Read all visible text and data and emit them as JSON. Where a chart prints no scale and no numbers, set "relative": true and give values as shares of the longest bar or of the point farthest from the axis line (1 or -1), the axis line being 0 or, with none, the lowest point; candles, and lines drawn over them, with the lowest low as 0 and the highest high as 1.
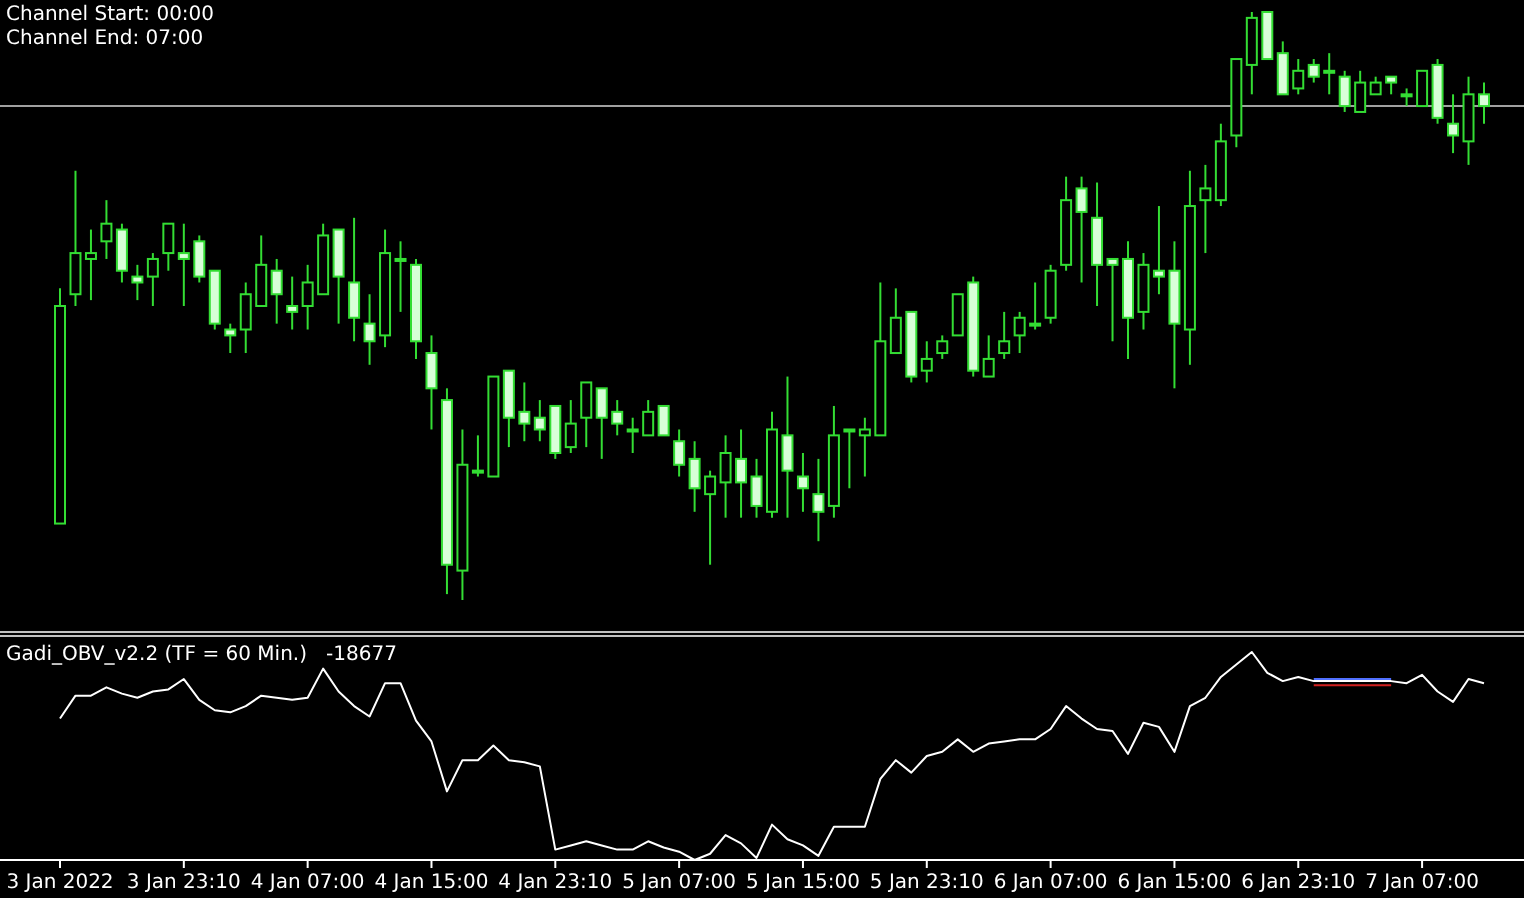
{
  "chart_data": [
    {
      "type": "candlestick",
      "relative": true,
      "color": "#33dd33",
      "annotations": [
        "Channel Start: 00:00",
        "Channel End: 07:00"
      ],
      "ref_lines": [
        {
          "axis": "y",
          "value": 0.84,
          "color": "#a0a0a0"
        }
      ],
      "categories": [
        null,
        null,
        null,
        null,
        null,
        null,
        null,
        null,
        null,
        null,
        null,
        null,
        null,
        null,
        null,
        null,
        null,
        null,
        null,
        null,
        null,
        null,
        null,
        null,
        null,
        null,
        null,
        null,
        null,
        null,
        null,
        null,
        null,
        null,
        null,
        null,
        null,
        null,
        null,
        null,
        null,
        null,
        null,
        null,
        null,
        null,
        null,
        null,
        null,
        null,
        null,
        null,
        null,
        null,
        null,
        null,
        null,
        null,
        null,
        null,
        null,
        null,
        null,
        null,
        null,
        null,
        null,
        null,
        null,
        null,
        null,
        null,
        null,
        null,
        null,
        null,
        null,
        null,
        null,
        null,
        null,
        null,
        null,
        null,
        null,
        null,
        null,
        null,
        null,
        null,
        null,
        null,
        null
      ],
      "ohlc": [
        [
          0.13,
          0.53,
          0.13,
          0.5
        ],
        [
          0.52,
          0.73,
          0.5,
          0.59
        ],
        [
          0.58,
          0.63,
          0.51,
          0.59
        ],
        [
          0.61,
          0.68,
          0.58,
          0.64
        ],
        [
          0.63,
          0.64,
          0.54,
          0.56
        ],
        [
          0.55,
          0.57,
          0.51,
          0.54
        ],
        [
          0.55,
          0.59,
          0.5,
          0.58
        ],
        [
          0.59,
          0.64,
          0.56,
          0.64
        ],
        [
          0.59,
          0.64,
          0.5,
          0.58
        ],
        [
          0.61,
          0.62,
          0.54,
          0.55
        ],
        [
          0.56,
          0.56,
          0.46,
          0.47
        ],
        [
          0.46,
          0.47,
          0.42,
          0.45
        ],
        [
          0.46,
          0.54,
          0.42,
          0.52
        ],
        [
          0.5,
          0.62,
          0.5,
          0.57
        ],
        [
          0.56,
          0.58,
          0.47,
          0.52
        ],
        [
          0.5,
          0.55,
          0.46,
          0.49
        ],
        [
          0.5,
          0.57,
          0.46,
          0.54
        ],
        [
          0.52,
          0.64,
          0.52,
          0.62
        ],
        [
          0.63,
          0.63,
          0.47,
          0.55
        ],
        [
          0.54,
          0.65,
          0.44,
          0.48
        ],
        [
          0.47,
          0.52,
          0.4,
          0.44
        ],
        [
          0.45,
          0.63,
          0.43,
          0.59
        ],
        [
          0.58,
          0.61,
          0.49,
          0.58
        ],
        [
          0.57,
          0.58,
          0.41,
          0.44
        ],
        [
          0.42,
          0.45,
          0.29,
          0.36
        ],
        [
          0.34,
          0.36,
          0.01,
          0.06
        ],
        [
          0.05,
          0.29,
          0.0,
          0.23
        ],
        [
          0.22,
          0.28,
          0.21,
          0.22
        ],
        [
          0.21,
          0.38,
          0.21,
          0.38
        ],
        [
          0.39,
          0.39,
          0.26,
          0.31
        ],
        [
          0.32,
          0.37,
          0.27,
          0.3
        ],
        [
          0.31,
          0.34,
          0.27,
          0.29
        ],
        [
          0.33,
          0.33,
          0.24,
          0.25
        ],
        [
          0.26,
          0.34,
          0.25,
          0.3
        ],
        [
          0.31,
          0.37,
          0.26,
          0.37
        ],
        [
          0.36,
          0.36,
          0.24,
          0.31
        ],
        [
          0.32,
          0.34,
          0.28,
          0.3
        ],
        [
          0.29,
          0.31,
          0.25,
          0.29
        ],
        [
          0.28,
          0.34,
          0.28,
          0.32
        ],
        [
          0.33,
          0.33,
          0.28,
          0.28
        ],
        [
          0.27,
          0.29,
          0.21,
          0.23
        ],
        [
          0.24,
          0.27,
          0.15,
          0.19
        ],
        [
          0.18,
          0.22,
          0.06,
          0.21
        ],
        [
          0.2,
          0.28,
          0.14,
          0.25
        ],
        [
          0.24,
          0.29,
          0.14,
          0.2
        ],
        [
          0.21,
          0.24,
          0.14,
          0.16
        ],
        [
          0.15,
          0.32,
          0.14,
          0.29
        ],
        [
          0.28,
          0.38,
          0.14,
          0.22
        ],
        [
          0.21,
          0.25,
          0.15,
          0.19
        ],
        [
          0.18,
          0.24,
          0.1,
          0.15
        ],
        [
          0.16,
          0.33,
          0.14,
          0.28
        ],
        [
          0.29,
          0.29,
          0.19,
          0.29
        ],
        [
          0.28,
          0.31,
          0.21,
          0.29
        ],
        [
          0.28,
          0.54,
          0.28,
          0.44
        ],
        [
          0.42,
          0.53,
          0.42,
          0.48
        ],
        [
          0.49,
          0.49,
          0.37,
          0.38
        ],
        [
          0.39,
          0.44,
          0.37,
          0.41
        ],
        [
          0.42,
          0.45,
          0.41,
          0.44
        ],
        [
          0.45,
          0.52,
          0.45,
          0.52
        ],
        [
          0.54,
          0.55,
          0.38,
          0.39
        ],
        [
          0.38,
          0.45,
          0.38,
          0.41
        ],
        [
          0.42,
          0.49,
          0.41,
          0.44
        ],
        [
          0.45,
          0.49,
          0.42,
          0.48
        ],
        [
          0.47,
          0.54,
          0.46,
          0.47
        ],
        [
          0.48,
          0.57,
          0.47,
          0.56
        ],
        [
          0.57,
          0.72,
          0.56,
          0.68
        ],
        [
          0.7,
          0.72,
          0.54,
          0.66
        ],
        [
          0.65,
          0.71,
          0.5,
          0.57
        ],
        [
          0.58,
          0.58,
          0.44,
          0.57
        ],
        [
          0.58,
          0.61,
          0.41,
          0.48
        ],
        [
          0.49,
          0.59,
          0.46,
          0.57
        ],
        [
          0.56,
          0.67,
          0.52,
          0.55
        ],
        [
          0.56,
          0.61,
          0.36,
          0.47
        ],
        [
          0.46,
          0.73,
          0.4,
          0.67
        ],
        [
          0.68,
          0.74,
          0.59,
          0.7
        ],
        [
          0.68,
          0.81,
          0.67,
          0.78
        ],
        [
          0.79,
          0.92,
          0.77,
          0.92
        ],
        [
          0.91,
          1,
          0.86,
          0.99
        ],
        [
          1,
          1,
          0.92,
          0.92
        ],
        [
          0.93,
          0.95,
          0.86,
          0.86
        ],
        [
          0.87,
          0.92,
          0.86,
          0.9
        ],
        [
          0.91,
          0.92,
          0.88,
          0.89
        ],
        [
          0.9,
          0.93,
          0.86,
          0.9
        ],
        [
          0.89,
          0.9,
          0.83,
          0.84
        ],
        [
          0.83,
          0.9,
          0.83,
          0.88
        ],
        [
          0.86,
          0.89,
          0.86,
          0.88
        ],
        [
          0.89,
          0.89,
          0.86,
          0.88
        ],
        [
          0.86,
          0.87,
          0.84,
          0.86
        ],
        [
          0.84,
          0.9,
          0.84,
          0.9
        ],
        [
          0.91,
          0.92,
          0.81,
          0.82
        ],
        [
          0.81,
          0.86,
          0.76,
          0.79
        ],
        [
          0.78,
          0.89,
          0.74,
          0.86
        ],
        [
          0.86,
          0.88,
          0.81,
          0.84
        ]
      ]
    },
    {
      "type": "line",
      "relative": true,
      "title": "Gadi_OBV_v2.2 (TF = 60 Min.)   -18677",
      "categories": [
        "3 Jan 2022",
        null,
        null,
        null,
        null,
        null,
        null,
        null,
        "3 Jan 23:10",
        null,
        null,
        null,
        null,
        null,
        null,
        null,
        "4 Jan 07:00",
        null,
        null,
        null,
        null,
        null,
        null,
        null,
        "4 Jan 15:00",
        null,
        null,
        null,
        null,
        null,
        null,
        null,
        "4 Jan 23:10",
        null,
        null,
        null,
        null,
        null,
        null,
        null,
        "5 Jan 07:00",
        null,
        null,
        null,
        null,
        null,
        null,
        null,
        "5 Jan 15:00",
        null,
        null,
        null,
        null,
        null,
        null,
        null,
        "5 Jan 23:10",
        null,
        null,
        null,
        null,
        null,
        null,
        null,
        "6 Jan 07:00",
        null,
        null,
        null,
        null,
        null,
        null,
        null,
        "6 Jan 15:00",
        null,
        null,
        null,
        null,
        null,
        null,
        null,
        "6 Jan 23:10",
        null,
        null,
        null,
        null,
        null,
        null,
        null,
        "7 Jan 07:00",
        null,
        null,
        null,
        null
      ],
      "series": [
        {
          "color": "#ffffff",
          "values": [
            0.68,
            0.79,
            0.79,
            0.83,
            0.8,
            0.78,
            0.81,
            0.82,
            0.87,
            0.77,
            0.72,
            0.71,
            0.74,
            0.79,
            0.78,
            0.77,
            0.78,
            0.92,
            0.81,
            0.74,
            0.69,
            0.85,
            0.85,
            0.67,
            0.57,
            0.33,
            0.48,
            0.48,
            0.55,
            0.48,
            0.47,
            0.45,
            0.05,
            0.07,
            0.09,
            0.07,
            0.05,
            0.05,
            0.09,
            0.06,
            0.04,
            0,
            0.03,
            0.12,
            0.08,
            0.01,
            0.17,
            0.1,
            0.07,
            0.02,
            0.16,
            0.16,
            0.16,
            0.39,
            0.48,
            0.42,
            0.5,
            0.52,
            0.58,
            0.52,
            0.56,
            0.57,
            0.58,
            0.58,
            0.63,
            0.74,
            0.68,
            0.63,
            0.62,
            0.51,
            0.66,
            0.64,
            0.52,
            0.74,
            0.78,
            0.88,
            0.94,
            1,
            0.9,
            0.86,
            0.88,
            0.86,
            0.86,
            0.86,
            0.86,
            0.86,
            0.86,
            0.85,
            0.89,
            0.81,
            0.76,
            0.87,
            0.85
          ]
        },
        {
          "color": "#5070ff",
          "values": [
            null,
            null,
            null,
            null,
            null,
            null,
            null,
            null,
            null,
            null,
            null,
            null,
            null,
            null,
            null,
            null,
            null,
            null,
            null,
            null,
            null,
            null,
            null,
            null,
            null,
            null,
            null,
            null,
            null,
            null,
            null,
            null,
            null,
            null,
            null,
            null,
            null,
            null,
            null,
            null,
            null,
            null,
            null,
            null,
            null,
            null,
            null,
            null,
            null,
            null,
            null,
            null,
            null,
            null,
            null,
            null,
            null,
            null,
            null,
            null,
            null,
            null,
            null,
            null,
            null,
            null,
            null,
            null,
            null,
            null,
            null,
            null,
            null,
            null,
            null,
            null,
            null,
            null,
            null,
            null,
            null,
            0.87,
            0.87,
            0.87,
            0.87,
            0.87,
            0.87,
            null,
            null,
            null,
            null,
            null,
            null
          ]
        },
        {
          "color": "#d02020",
          "values": [
            null,
            null,
            null,
            null,
            null,
            null,
            null,
            null,
            null,
            null,
            null,
            null,
            null,
            null,
            null,
            null,
            null,
            null,
            null,
            null,
            null,
            null,
            null,
            null,
            null,
            null,
            null,
            null,
            null,
            null,
            null,
            null,
            null,
            null,
            null,
            null,
            null,
            null,
            null,
            null,
            null,
            null,
            null,
            null,
            null,
            null,
            null,
            null,
            null,
            null,
            null,
            null,
            null,
            null,
            null,
            null,
            null,
            null,
            null,
            null,
            null,
            null,
            null,
            null,
            null,
            null,
            null,
            null,
            null,
            null,
            null,
            null,
            null,
            null,
            null,
            null,
            null,
            null,
            null,
            null,
            null,
            0.84,
            0.84,
            0.84,
            0.84,
            0.84,
            0.84,
            null,
            null,
            null,
            null,
            null,
            null
          ]
        }
      ]
    }
  ]
}
